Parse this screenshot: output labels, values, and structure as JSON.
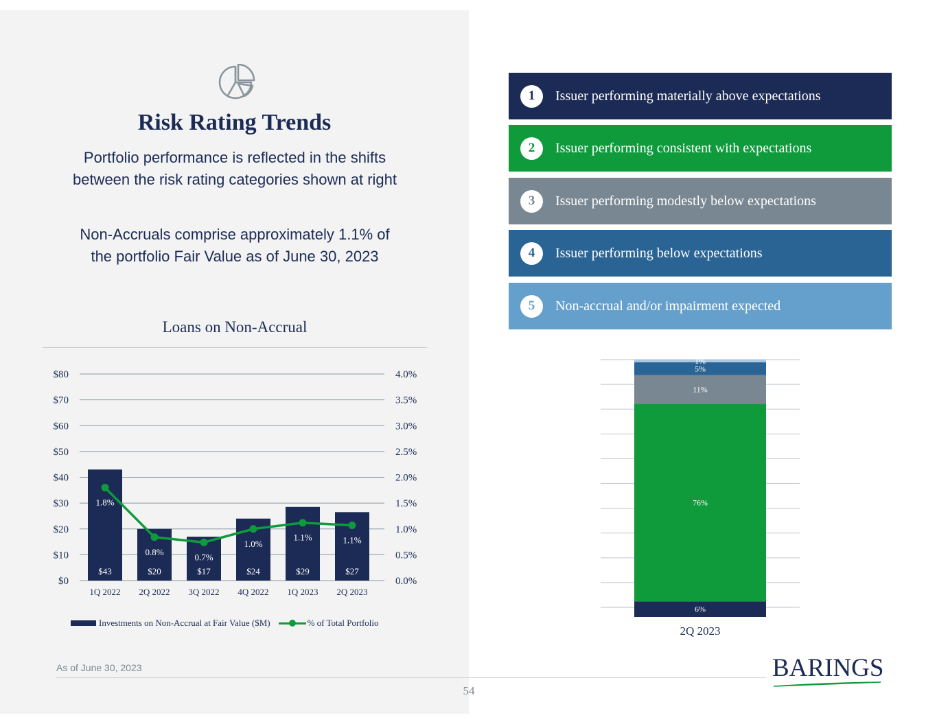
{
  "page": {
    "title": "Risk Rating Trends",
    "subtitle1_line1": "Portfolio performance is reflected in the shifts",
    "subtitle1_line2": "between the risk rating categories shown at right",
    "subtitle2_line1": "Non-Accruals comprise approximately 1.1% of",
    "subtitle2_line2": "the portfolio Fair Value as of June 30, 2023",
    "footnote": "As of June 30, 2023",
    "page_number": "54",
    "logo_text": "BARINGS",
    "icon": "pie-chart-icon"
  },
  "colors": {
    "navy": "#1c2b55",
    "green": "#0f9a3c",
    "gray": "#798792",
    "blue": "#2a6494",
    "light_blue": "#65a0cc",
    "very_light_blue": "#a9c8e6",
    "panel": "#f2f3f2"
  },
  "ratings": [
    {
      "number": "1",
      "label": "Issuer performing materially above expectations",
      "color": "#1c2b55"
    },
    {
      "number": "2",
      "label": "Issuer performing consistent with expectations",
      "color": "#0f9a3c"
    },
    {
      "number": "3",
      "label": "Issuer performing modestly below expectations",
      "color": "#798792"
    },
    {
      "number": "4",
      "label": "Issuer performing below expectations",
      "color": "#2a6494"
    },
    {
      "number": "5",
      "label": "Non-accrual and/or impairment expected",
      "color": "#65a0cc"
    }
  ],
  "chart_data": [
    {
      "type": "bar",
      "title": "Loans on Non-Accrual",
      "categories": [
        "1Q  2022",
        "2Q  2022",
        "3Q  2022",
        "4Q  2022",
        "1Q 2023",
        "2Q 2023"
      ],
      "series": [
        {
          "name": "Investments on Non-Accrual at Fair Value ($M)",
          "type": "bar",
          "axis": "left",
          "values": [
            43,
            20,
            17,
            24,
            28.5,
            26.5
          ],
          "labels": [
            "$43",
            "$20",
            "$17",
            "$24",
            "$29",
            "$27"
          ]
        },
        {
          "name": "% of Total Portfolio",
          "type": "line",
          "axis": "right",
          "values": [
            1.8,
            0.84,
            0.74,
            1.0,
            1.12,
            1.07
          ],
          "labels": [
            "1.8%",
            "0.8%",
            "0.7%",
            "1.0%",
            "1.1%",
            "1.1%"
          ]
        }
      ],
      "y_left": {
        "min": 0,
        "max": 80,
        "ticks": [
          "$0",
          "$10",
          "$20",
          "$30",
          "$40",
          "$50",
          "$60",
          "$70",
          "$80"
        ]
      },
      "y_right": {
        "min": 0,
        "max": 4,
        "ticks": [
          "0.0%",
          "0.5%",
          "1.0%",
          "1.5%",
          "2.0%",
          "2.5%",
          "3.0%",
          "3.5%",
          "4.0%"
        ]
      },
      "grid": true,
      "legend": "bottom"
    },
    {
      "type": "bar",
      "stacked": true,
      "categories": [
        "2Q 2023"
      ],
      "series": [
        {
          "name": "Risk Rating 1",
          "value": 6,
          "label": "6%",
          "color": "#1c2b55"
        },
        {
          "name": "Risk Rating 2",
          "value": 76,
          "label": "76%",
          "color": "#0f9a3c"
        },
        {
          "name": "Risk Rating 3",
          "value": 11,
          "label": "11%",
          "color": "#798792"
        },
        {
          "name": "Risk Rating 4",
          "value": 5,
          "label": "5%",
          "color": "#2a6494"
        },
        {
          "name": "Risk Rating 5",
          "value": 1,
          "label": "1%",
          "color": "#a9c8e6"
        }
      ],
      "ylim": [
        0,
        100
      ],
      "grid": true
    }
  ]
}
